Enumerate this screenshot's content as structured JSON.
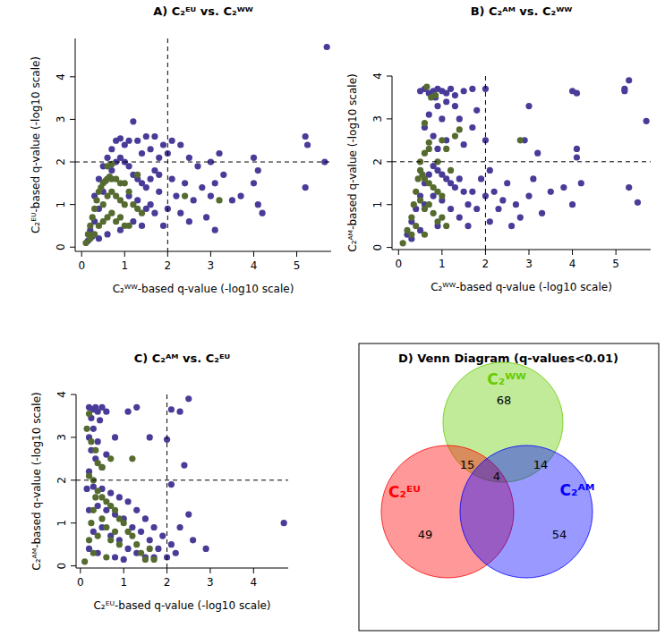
{
  "chart_data": [
    {
      "type": "scatter",
      "title": "A) C₂ᴱᵁ vs. C₂ᵂᵂ",
      "x_label": "C₂ᵂᵂ-based q-value (-log10 scale)",
      "y_label": "C₂ᴱᵁ-based q-value (-log10 scale)",
      "xlim": [
        -0.15,
        5.8
      ],
      "ylim": [
        -0.1,
        4.9
      ],
      "xticks": [
        0,
        1,
        2,
        3,
        4,
        5
      ],
      "yticks": [
        0,
        1,
        2,
        3,
        4
      ],
      "vlines": [
        2
      ],
      "hlines": [
        2
      ],
      "marker": "circle",
      "series": [
        {
          "color": "#483c98",
          "x": [
            0.3,
            0.4,
            0.5,
            0.6,
            0.7,
            0.8,
            0.9,
            1.0,
            1.1,
            1.2,
            1.3,
            1.4,
            1.5,
            1.6,
            1.7,
            1.8,
            1.9,
            2.0,
            2.1,
            2.3,
            2.5,
            2.7,
            3.0,
            3.2,
            5.2,
            5.25,
            5.7,
            5.65,
            5.2,
            2.1,
            2.2,
            2.4,
            2.6,
            2.8,
            3.0,
            3.1,
            3.3,
            3.5,
            3.7,
            4.0,
            4.1,
            4.2,
            4.0,
            4.1,
            3.1,
            2.9,
            2.5,
            2.3,
            2.0,
            1.8,
            1.6,
            1.9,
            0.2,
            0.3,
            0.4,
            0.5,
            0.6,
            0.7,
            0.8,
            0.9,
            1.0,
            1.1,
            1.2,
            1.3,
            1.4,
            1.5,
            1.6,
            1.7,
            1.8,
            1.1,
            1.3,
            1.5,
            1.7,
            1.2,
            1.4,
            0.9,
            0.6,
            0.4,
            0.15,
            0.25
          ],
          "values": [
            1.2,
            1.6,
            1.9,
            2.1,
            2.3,
            2.5,
            2.55,
            2.4,
            2.5,
            2.95,
            2.5,
            2.2,
            2.6,
            2.3,
            2.6,
            2.1,
            2.4,
            2.2,
            2.5,
            2.4,
            2.1,
            1.9,
            2.0,
            2.2,
            2.6,
            2.4,
            4.7,
            2.0,
            1.4,
            1.6,
            1.2,
            1.5,
            1.1,
            1.4,
            1.2,
            1.5,
            1.7,
            1.1,
            1.2,
            1.5,
            1.0,
            0.8,
            2.1,
            1.8,
            0.4,
            0.7,
            0.6,
            0.8,
            0.9,
            1.3,
            1.0,
            0.5,
            0.4,
            0.6,
            0.9,
            1.3,
            1.6,
            1.8,
            2.0,
            2.1,
            2.0,
            1.9,
            1.7,
            1.6,
            1.5,
            1.4,
            1.6,
            1.8,
            1.7,
            1.2,
            1.1,
            0.9,
            0.8,
            0.6,
            0.5,
            0.4,
            0.3,
            0.2,
            0.15,
            0.25
          ]
        },
        {
          "color": "#556b2f",
          "x": [
            0.1,
            0.15,
            0.2,
            0.25,
            0.3,
            0.35,
            0.4,
            0.45,
            0.5,
            0.55,
            0.6,
            0.65,
            0.7,
            0.8,
            0.9,
            1.0,
            0.5,
            0.6,
            0.7,
            0.8,
            0.9,
            1.0,
            1.1,
            1.2,
            1.3,
            1.4,
            0.4,
            0.5,
            0.6,
            0.7,
            0.8,
            0.9,
            1.0,
            0.3,
            0.2,
            1.1,
            0.7,
            0.6,
            2.4,
            3.2,
            1.3
          ],
          "values": [
            0.1,
            0.3,
            0.5,
            0.7,
            0.9,
            1.1,
            1.3,
            1.4,
            1.5,
            1.55,
            1.6,
            1.65,
            1.6,
            1.6,
            1.5,
            1.5,
            1.0,
            1.2,
            1.3,
            1.2,
            1.1,
            1.0,
            1.3,
            1.0,
            0.9,
            0.8,
            0.5,
            0.6,
            0.7,
            0.8,
            0.6,
            0.7,
            0.5,
            0.3,
            0.2,
            0.5,
            1.95,
            1.9,
            1.2,
            1.1,
            1.7
          ]
        }
      ]
    },
    {
      "type": "scatter",
      "title": "B) C₂ᴬᴹ vs. C₂ᵂᵂ",
      "x_label": "C₂ᵂᵂ-based q-value (-log10 scale)",
      "y_label": "C₂ᴬᴹ-based q-value (-log10 scale)",
      "xlim": [
        -0.15,
        5.8
      ],
      "ylim": [
        -0.05,
        4.0
      ],
      "xticks": [
        0,
        1,
        2,
        3,
        4,
        5
      ],
      "yticks": [
        0,
        1,
        2,
        3,
        4
      ],
      "vlines": [
        2
      ],
      "hlines": [
        2
      ],
      "marker": "circle",
      "series": [
        {
          "color": "#483c98",
          "x": [
            0.5,
            0.6,
            0.7,
            0.8,
            0.85,
            0.9,
            1.0,
            1.1,
            1.2,
            1.3,
            1.5,
            1.7,
            2.0,
            0.9,
            1.1,
            1.3,
            0.7,
            1.0,
            1.4,
            1.8,
            2.0,
            2.9,
            3.0,
            4.0,
            4.1,
            5.2,
            5.3,
            5.2,
            5.7,
            5.5,
            5.3,
            4.1,
            4.1,
            3.2,
            1.1,
            0.8,
            0.6,
            0.9,
            1.5,
            1.7,
            2.1,
            2.2,
            2.3,
            2.4,
            2.5,
            2.7,
            2.8,
            3.0,
            3.1,
            3.3,
            3.5,
            3.8,
            4.0,
            2.6,
            2.0,
            1.9,
            1.7,
            1.6,
            2.1,
            4.2,
            0.2,
            0.3,
            0.4,
            0.5,
            0.6,
            0.7,
            0.8,
            0.9,
            1.0,
            1.1,
            1.2,
            1.3,
            1.4,
            1.5,
            0.6,
            0.8,
            1.0,
            1.2,
            1.4,
            0.9,
            0.5,
            0.3,
            1.6,
            1.8
          ],
          "values": [
            3.65,
            3.7,
            3.6,
            3.65,
            3.5,
            3.7,
            3.65,
            3.6,
            3.7,
            3.55,
            3.65,
            3.7,
            3.7,
            3.3,
            3.4,
            3.3,
            3.1,
            3.0,
            3.0,
            3.2,
            2.5,
            2.5,
            3.3,
            3.65,
            3.6,
            3.65,
            3.9,
            3.7,
            2.95,
            1.05,
            1.4,
            2.3,
            2.1,
            2.2,
            2.5,
            2.6,
            2.8,
            2.3,
            2.4,
            2.8,
            1.8,
            1.3,
            0.9,
            1.1,
            1.5,
            1.0,
            0.7,
            1.2,
            1.6,
            0.8,
            1.3,
            1.4,
            1.0,
            0.5,
            1.2,
            1.6,
            1.3,
            1.0,
            0.6,
            1.5,
            0.3,
            0.6,
            0.9,
            1.2,
            1.5,
            1.7,
            1.9,
            1.8,
            1.7,
            1.6,
            1.5,
            1.4,
            1.6,
            1.3,
            1.0,
            1.2,
            1.1,
            0.9,
            0.7,
            0.5,
            0.4,
            0.2,
            0.5,
            0.9
          ]
        },
        {
          "color": "#556b2f",
          "x": [
            0.1,
            0.2,
            0.3,
            0.35,
            0.4,
            0.45,
            0.5,
            0.55,
            0.6,
            0.7,
            0.8,
            0.9,
            1.0,
            0.5,
            0.6,
            0.7,
            0.8,
            0.9,
            1.0,
            1.1,
            0.4,
            0.3,
            0.6,
            0.5,
            0.6,
            0.7,
            0.6,
            0.7,
            0.65,
            0.75,
            0.85,
            1.0,
            1.1,
            1.3,
            1.4,
            2.8,
            1.2,
            0.9
          ],
          "values": [
            0.1,
            0.4,
            0.7,
            1.0,
            1.3,
            1.6,
            1.8,
            1.7,
            1.6,
            1.5,
            1.4,
            1.3,
            1.2,
            1.1,
            0.9,
            1.0,
            0.8,
            0.6,
            0.7,
            0.5,
            0.5,
            0.3,
            0.3,
            2.0,
            2.2,
            2.45,
            2.9,
            2.3,
            3.75,
            3.5,
            3.55,
            2.5,
            2.3,
            2.6,
            2.75,
            2.5,
            1.8,
            2.0
          ]
        }
      ]
    },
    {
      "type": "scatter",
      "title": "C) C₂ᴬᴹ vs. C₂ᴱᵁ",
      "x_label": "C₂ᴱᵁ-based q-value (-log10 scale)",
      "y_label": "C₂ᴬᴹ-based q-value (-log10 scale)",
      "xlim": [
        -0.1,
        4.8
      ],
      "ylim": [
        -0.05,
        4.0
      ],
      "xticks": [
        0,
        1,
        2,
        3,
        4
      ],
      "yticks": [
        0,
        1,
        2,
        3,
        4
      ],
      "vlines": [
        2
      ],
      "hlines": [
        2
      ],
      "marker": "circle",
      "series": [
        {
          "color": "#483c98",
          "x": [
            0.2,
            0.3,
            0.35,
            0.4,
            0.5,
            0.6,
            0.25,
            0.45,
            0.3,
            0.2,
            0.4,
            0.25,
            0.35,
            0.5,
            0.2,
            0.6,
            0.8,
            1.1,
            1.3,
            1.6,
            2.1,
            2.5,
            2.3,
            2.0,
            2.4,
            2.1,
            4.7,
            2.9,
            2.5,
            2.3,
            2.6,
            2.2,
            0.15,
            0.3,
            0.5,
            0.7,
            0.9,
            1.1,
            1.3,
            1.5,
            1.7,
            1.9,
            2.1,
            0.2,
            0.4,
            0.6,
            0.8,
            1.0,
            1.2,
            1.4,
            1.6,
            1.8,
            0.3,
            0.5,
            0.7,
            0.9,
            1.1,
            1.3,
            1.5,
            0.4,
            0.2,
            0.8,
            1.0,
            2.0,
            1.7
          ],
          "values": [
            3.7,
            3.65,
            3.7,
            3.6,
            3.7,
            3.6,
            3.45,
            3.4,
            3.2,
            3.0,
            2.9,
            2.7,
            2.5,
            2.3,
            2.2,
            2.6,
            3.0,
            3.6,
            3.7,
            3.0,
            3.65,
            3.9,
            3.6,
            2.95,
            2.35,
            1.9,
            1.0,
            0.4,
            1.2,
            0.9,
            0.6,
            0.3,
            1.8,
            1.85,
            1.8,
            1.7,
            1.6,
            1.5,
            1.3,
            1.1,
            0.9,
            0.7,
            0.5,
            1.3,
            1.4,
            1.3,
            1.2,
            1.1,
            0.9,
            0.8,
            0.6,
            0.4,
            0.8,
            0.9,
            0.7,
            0.6,
            0.4,
            0.3,
            0.2,
            0.3,
            0.4,
            0.2,
            0.15,
            0.2,
            0.2
          ]
        },
        {
          "color": "#556b2f",
          "x": [
            0.1,
            0.2,
            0.25,
            0.3,
            0.35,
            0.4,
            0.5,
            0.6,
            0.7,
            0.8,
            0.9,
            1.0,
            1.1,
            1.2,
            1.3,
            0.5,
            0.6,
            0.7,
            0.8,
            0.9,
            0.4,
            0.3,
            0.6,
            1.4,
            1.6,
            0.2,
            0.3,
            0.25,
            0.35,
            0.2,
            0.15,
            0.4,
            0.5,
            0.7,
            1.2,
            1.5,
            1.7
          ],
          "values": [
            0.1,
            0.6,
            1.0,
            1.3,
            1.6,
            1.75,
            1.6,
            1.5,
            1.4,
            1.3,
            1.1,
            1.0,
            0.8,
            0.7,
            0.5,
            1.1,
            0.9,
            0.6,
            0.8,
            0.5,
            0.7,
            0.3,
            0.2,
            0.3,
            0.4,
            2.1,
            2.0,
            2.9,
            2.7,
            3.55,
            3.2,
            2.4,
            2.3,
            2.5,
            2.5,
            0.15,
            0.15
          ]
        }
      ]
    },
    {
      "type": "venn",
      "title": "D) Venn Diagram (q-values<0.01)",
      "sets": [
        {
          "name": "C₂ᵂᵂ",
          "color": "#66cc00"
        },
        {
          "name": "C₂ᴱᵁ",
          "color": "#ff0000"
        },
        {
          "name": "C₂ᴬᴹ",
          "color": "#0000ff"
        }
      ],
      "regions": [
        {
          "sets": [
            0
          ],
          "value": 68
        },
        {
          "sets": [
            0,
            1
          ],
          "value": 15
        },
        {
          "sets": [
            0,
            2
          ],
          "value": 14
        },
        {
          "sets": [
            0,
            1,
            2
          ],
          "value": 4
        },
        {
          "sets": [
            1
          ],
          "value": 49
        },
        {
          "sets": [
            2
          ],
          "value": 54
        }
      ]
    }
  ]
}
